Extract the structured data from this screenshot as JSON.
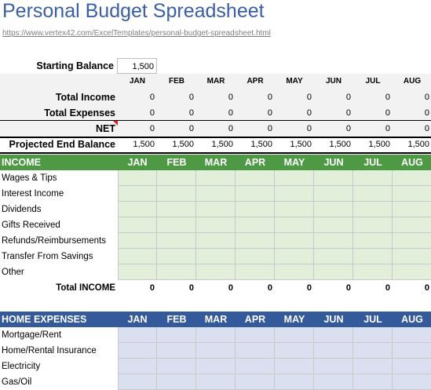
{
  "title": "Personal Budget Spreadsheet",
  "url": "https://www.vertex42.com/ExcelTemplates/personal-budget-spreadsheet.html",
  "months": [
    "JAN",
    "FEB",
    "MAR",
    "APR",
    "MAY",
    "JUN",
    "JUL",
    "AUG"
  ],
  "summary": {
    "starting_balance_label": "Starting Balance",
    "starting_balance_value": "1,500",
    "total_income_label": "Total Income",
    "total_income": [
      "0",
      "0",
      "0",
      "0",
      "0",
      "0",
      "0",
      "0"
    ],
    "total_expenses_label": "Total Expenses",
    "total_expenses": [
      "0",
      "0",
      "0",
      "0",
      "0",
      "0",
      "0",
      "0"
    ],
    "net_label": "NET",
    "net": [
      "0",
      "0",
      "0",
      "0",
      "0",
      "0",
      "0",
      "0"
    ],
    "projected_label": "Projected End Balance",
    "projected": [
      "1,500",
      "1,500",
      "1,500",
      "1,500",
      "1,500",
      "1,500",
      "1,500",
      "1,500"
    ]
  },
  "income": {
    "header": "INCOME",
    "items": [
      "Wages & Tips",
      "Interest Income",
      "Dividends",
      "Gifts Received",
      "Refunds/Reimbursements",
      "Transfer From Savings",
      "Other"
    ],
    "total_label": "Total INCOME",
    "totals": [
      "0",
      "0",
      "0",
      "0",
      "0",
      "0",
      "0",
      "0"
    ],
    "color": "#4e9a44"
  },
  "home_expenses": {
    "header": "HOME EXPENSES",
    "items": [
      "Mortgage/Rent",
      "Home/Rental Insurance",
      "Electricity",
      "Gas/Oil"
    ],
    "color": "#345a9c"
  }
}
